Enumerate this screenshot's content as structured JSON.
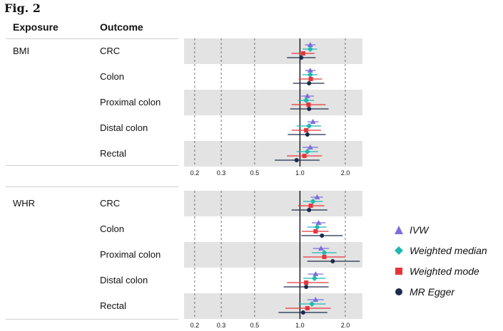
{
  "figure_title": "Fig. 2",
  "headers": {
    "exposure": "Exposure",
    "outcome": "Outcome"
  },
  "colors": {
    "IVW": "#7b6fdc",
    "Weighted median": "#1fb8b0",
    "Weighted mode": "#e8353b",
    "MR Egger": "#1c2b4b"
  },
  "chart_data": [
    {
      "type": "forest",
      "exposure": "BMI",
      "outcomes": [
        "CRC",
        "Colon",
        "Proximal colon",
        "Distal colon",
        "Rectal"
      ],
      "x_scale": "log",
      "xlim": [
        0.17,
        2.6
      ],
      "xticks": [
        "0.2",
        "0.3",
        "0.5",
        "1.0",
        "2.0"
      ],
      "reference_line": 1.0,
      "series": [
        {
          "name": "IVW",
          "estimates": [
            {
              "est": 1.17,
              "lo": 1.08,
              "hi": 1.27
            },
            {
              "est": 1.17,
              "lo": 1.08,
              "hi": 1.27
            },
            {
              "est": 1.12,
              "lo": 1.02,
              "hi": 1.24
            },
            {
              "est": 1.22,
              "lo": 1.12,
              "hi": 1.33
            },
            {
              "est": 1.17,
              "lo": 1.04,
              "hi": 1.32
            }
          ]
        },
        {
          "name": "Weighted median",
          "estimates": [
            {
              "est": 1.17,
              "lo": 1.04,
              "hi": 1.3
            },
            {
              "est": 1.17,
              "lo": 1.04,
              "hi": 1.31
            },
            {
              "est": 1.1,
              "lo": 0.97,
              "hi": 1.24
            },
            {
              "est": 1.15,
              "lo": 0.95,
              "hi": 1.38
            },
            {
              "est": 1.12,
              "lo": 0.95,
              "hi": 1.32
            }
          ]
        },
        {
          "name": "Weighted mode",
          "estimates": [
            {
              "est": 1.05,
              "lo": 0.88,
              "hi": 1.25
            },
            {
              "est": 1.18,
              "lo": 0.98,
              "hi": 1.4
            },
            {
              "est": 1.14,
              "lo": 0.88,
              "hi": 1.48
            },
            {
              "est": 1.1,
              "lo": 0.88,
              "hi": 1.38
            },
            {
              "est": 1.07,
              "lo": 0.82,
              "hi": 1.4
            }
          ]
        },
        {
          "name": "MR Egger",
          "estimates": [
            {
              "est": 1.02,
              "lo": 0.82,
              "hi": 1.27
            },
            {
              "est": 1.15,
              "lo": 0.9,
              "hi": 1.45
            },
            {
              "est": 1.15,
              "lo": 0.86,
              "hi": 1.55
            },
            {
              "est": 1.12,
              "lo": 0.83,
              "hi": 1.48
            },
            {
              "est": 0.95,
              "lo": 0.68,
              "hi": 1.35
            }
          ]
        }
      ]
    },
    {
      "type": "forest",
      "exposure": "WHR",
      "outcomes": [
        "CRC",
        "Colon",
        "Proximal colon",
        "Distal colon",
        "Rectal"
      ],
      "x_scale": "log",
      "xlim": [
        0.17,
        2.6
      ],
      "xticks": [
        "0.2",
        "0.3",
        "0.5",
        "1.0",
        "2.0"
      ],
      "reference_line": 1.0,
      "series": [
        {
          "name": "IVW",
          "estimates": [
            {
              "est": 1.3,
              "lo": 1.18,
              "hi": 1.42
            },
            {
              "est": 1.33,
              "lo": 1.2,
              "hi": 1.48
            },
            {
              "est": 1.38,
              "lo": 1.22,
              "hi": 1.56
            },
            {
              "est": 1.27,
              "lo": 1.13,
              "hi": 1.43
            },
            {
              "est": 1.27,
              "lo": 1.12,
              "hi": 1.44
            }
          ]
        },
        {
          "name": "Weighted median",
          "estimates": [
            {
              "est": 1.22,
              "lo": 1.05,
              "hi": 1.42
            },
            {
              "est": 1.3,
              "lo": 1.12,
              "hi": 1.5
            },
            {
              "est": 1.45,
              "lo": 1.2,
              "hi": 1.75
            },
            {
              "est": 1.25,
              "lo": 1.05,
              "hi": 1.48
            },
            {
              "est": 1.2,
              "lo": 0.98,
              "hi": 1.48
            }
          ]
        },
        {
          "name": "Weighted mode",
          "estimates": [
            {
              "est": 1.18,
              "lo": 0.97,
              "hi": 1.45
            },
            {
              "est": 1.27,
              "lo": 1.03,
              "hi": 1.55
            },
            {
              "est": 1.45,
              "lo": 1.05,
              "hi": 2.0
            },
            {
              "est": 1.1,
              "lo": 0.82,
              "hi": 1.55
            },
            {
              "est": 1.12,
              "lo": 0.8,
              "hi": 1.6
            }
          ]
        },
        {
          "name": "MR Egger",
          "estimates": [
            {
              "est": 1.15,
              "lo": 0.88,
              "hi": 1.52
            },
            {
              "est": 1.4,
              "lo": 1.02,
              "hi": 1.92
            },
            {
              "est": 1.65,
              "lo": 1.12,
              "hi": 2.5
            },
            {
              "est": 1.1,
              "lo": 0.78,
              "hi": 1.55
            },
            {
              "est": 1.05,
              "lo": 0.72,
              "hi": 1.52
            }
          ]
        }
      ]
    }
  ]
}
